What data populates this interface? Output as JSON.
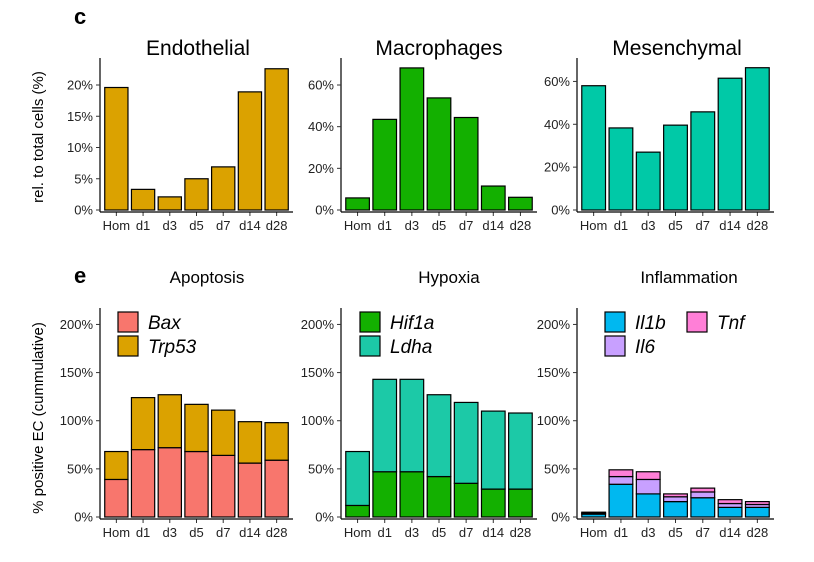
{
  "panel_labels": {
    "top": "c",
    "bottom": "e"
  },
  "ylabels": {
    "top": "rel. to total cells (%)",
    "bottom": "% positive EC (cummulative)"
  },
  "chart_data": [
    {
      "type": "bar",
      "title": "Endothelial",
      "categories": [
        "Hom",
        "d1",
        "d3",
        "d5",
        "d7",
        "d14",
        "d28"
      ],
      "values": [
        19.6,
        3.3,
        2.1,
        5.0,
        6.9,
        18.9,
        22.6
      ],
      "color": "#DBA200",
      "ylim": [
        0,
        24
      ],
      "yticks": [
        0,
        5,
        10,
        15,
        20
      ],
      "ytick_labels": [
        "0%",
        "5%",
        "10%",
        "15%",
        "20%"
      ]
    },
    {
      "type": "bar",
      "title": "Macrophages",
      "categories": [
        "Hom",
        "d1",
        "d3",
        "d5",
        "d7",
        "d14",
        "d28"
      ],
      "values": [
        5.8,
        43.5,
        68.2,
        53.8,
        44.4,
        11.5,
        6.1
      ],
      "color": "#13B000",
      "ylim": [
        0,
        72
      ],
      "yticks": [
        0,
        20,
        40,
        60
      ],
      "ytick_labels": [
        "0%",
        "20%",
        "40%",
        "60%"
      ]
    },
    {
      "type": "bar",
      "title": "Mesenchymal",
      "categories": [
        "Hom",
        "d1",
        "d3",
        "d5",
        "d7",
        "d14",
        "d28"
      ],
      "values": [
        58.0,
        38.3,
        27.0,
        39.6,
        45.8,
        61.5,
        66.4
      ],
      "color": "#00C9A7",
      "ylim": [
        0,
        70
      ],
      "yticks": [
        0,
        20,
        40,
        60
      ],
      "ytick_labels": [
        "0%",
        "20%",
        "40%",
        "60%"
      ]
    },
    {
      "type": "bar",
      "stacked": true,
      "title": "Apoptosis",
      "categories": [
        "Hom",
        "d1",
        "d3",
        "d5",
        "d7",
        "d14",
        "d28"
      ],
      "series": [
        {
          "name": "Bax",
          "values": [
            39,
            70,
            72,
            68,
            64,
            56,
            59
          ],
          "color": "#F8766D"
        },
        {
          "name": "Trp53",
          "values": [
            29,
            54,
            55,
            49,
            47,
            43,
            39
          ],
          "color": "#DBA200"
        }
      ],
      "ylim": [
        0,
        215
      ],
      "yticks": [
        0,
        50,
        100,
        150,
        200
      ],
      "ytick_labels": [
        "0%",
        "50%",
        "100%",
        "150%",
        "200%"
      ]
    },
    {
      "type": "bar",
      "stacked": true,
      "title": "Hypoxia",
      "categories": [
        "Hom",
        "d1",
        "d3",
        "d5",
        "d7",
        "d14",
        "d28"
      ],
      "series": [
        {
          "name": "Hif1a",
          "values": [
            12,
            47,
            47,
            42,
            35,
            29,
            29
          ],
          "color": "#13B000"
        },
        {
          "name": "Ldha",
          "values": [
            56,
            96,
            96,
            85,
            84,
            81,
            79
          ],
          "color": "#1CC9A7"
        }
      ],
      "ylim": [
        0,
        215
      ],
      "yticks": [
        0,
        50,
        100,
        150,
        200
      ],
      "ytick_labels": [
        "0%",
        "50%",
        "100%",
        "150%",
        "200%"
      ]
    },
    {
      "type": "bar",
      "stacked": true,
      "title": "Inflammation",
      "categories": [
        "Hom",
        "d1",
        "d3",
        "d5",
        "d7",
        "d14",
        "d28"
      ],
      "series": [
        {
          "name": "Il1b",
          "values": [
            3,
            34,
            24,
            16,
            20,
            10,
            10
          ],
          "color": "#00B8F0"
        },
        {
          "name": "Il6",
          "values": [
            1,
            8,
            15,
            5,
            6,
            4,
            3
          ],
          "color": "#C8A0FF"
        },
        {
          "name": "Tnf",
          "values": [
            1,
            7,
            8,
            3,
            4,
            4,
            3
          ],
          "color": "#FF7FD7"
        }
      ],
      "ylim": [
        0,
        215
      ],
      "yticks": [
        0,
        50,
        100,
        150,
        200
      ],
      "ytick_labels": [
        "0%",
        "50%",
        "100%",
        "150%",
        "200%"
      ]
    }
  ]
}
